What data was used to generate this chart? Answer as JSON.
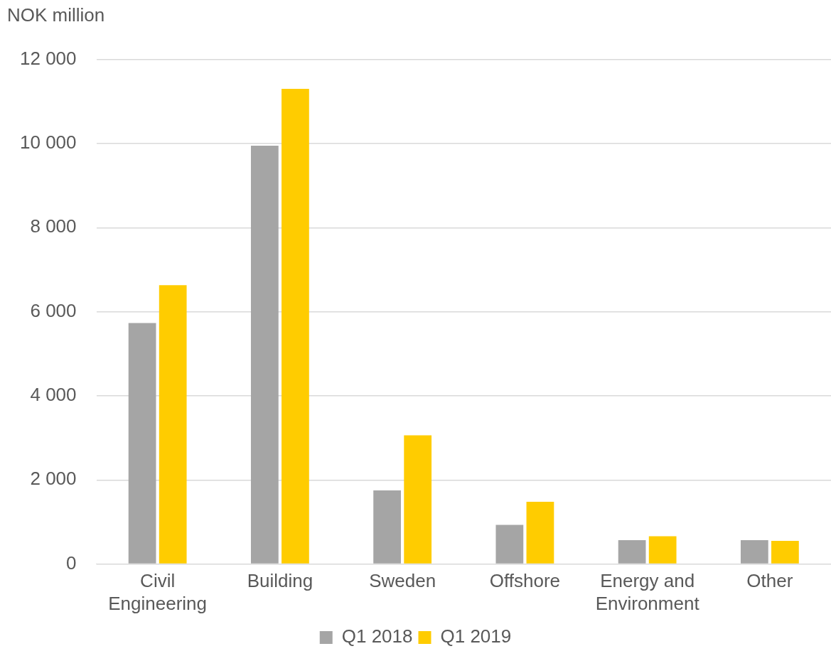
{
  "chart_data": {
    "type": "bar",
    "ylabel": "NOK million",
    "categories": [
      "Civil Engineering",
      "Building",
      "Sweden",
      "Offshore",
      "Energy and Environment",
      "Other"
    ],
    "series": [
      {
        "name": "Q1 2018",
        "color": "#a5a5a5",
        "values": [
          5730,
          9950,
          1750,
          930,
          570,
          570
        ]
      },
      {
        "name": "Q1 2019",
        "color": "#ffcc00",
        "values": [
          6630,
          11300,
          3060,
          1480,
          660,
          550
        ]
      }
    ],
    "ylim": [
      0,
      12000
    ],
    "yticks": [
      {
        "value": 0,
        "label": "0"
      },
      {
        "value": 2000,
        "label": "2 000"
      },
      {
        "value": 4000,
        "label": "4 000"
      },
      {
        "value": 6000,
        "label": "6 000"
      },
      {
        "value": 8000,
        "label": "8 000"
      },
      {
        "value": 10000,
        "label": "10 000"
      },
      {
        "value": 12000,
        "label": "12 000"
      }
    ],
    "grid": "y",
    "legend": "bottom"
  }
}
